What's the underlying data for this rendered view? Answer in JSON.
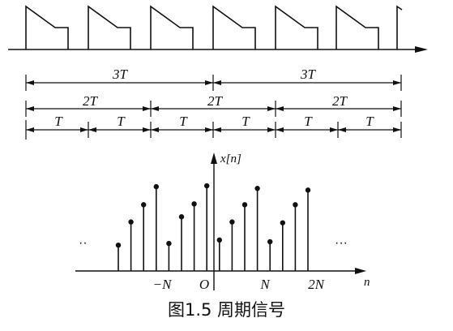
{
  "caption": "图1.5 周期信号",
  "period_labels": {
    "three_T": "3T",
    "two_T": "2T",
    "T": "T"
  },
  "dots_left": "··",
  "dots_right": "···",
  "stem_plot": {
    "y_label": "x[n]",
    "x_label": "n",
    "tick_labels": [
      "−N",
      "O",
      "N",
      "2N"
    ],
    "stem_heights": [
      0.3,
      0.57,
      0.77,
      0.98,
      0.32,
      0.63,
      0.78,
      0.99,
      0.36,
      0.57,
      0.77,
      0.96,
      0.34,
      0.56,
      0.77,
      0.94
    ]
  }
}
